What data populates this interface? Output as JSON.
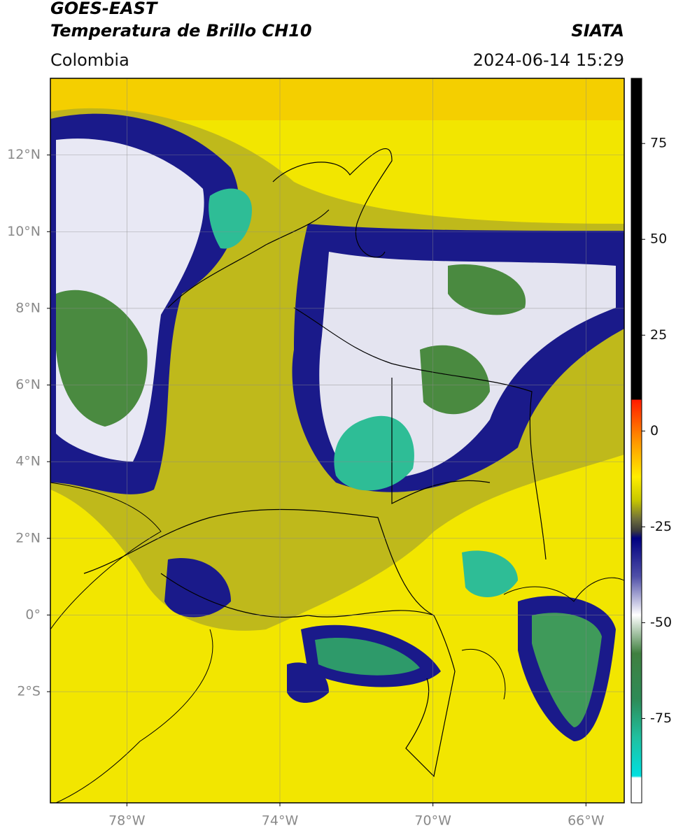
{
  "header": {
    "title": "GOES-EAST",
    "subtitle": "Temperatura de Brillo CH10",
    "source": "SIATA",
    "region": "Colombia",
    "datetime": "2024-06-14 15:29"
  },
  "map": {
    "xlim": [
      -80,
      -65
    ],
    "ylim": [
      -4.9,
      14
    ],
    "xticks": [
      {
        "value": -78,
        "label": "78°W"
      },
      {
        "value": -74,
        "label": "74°W"
      },
      {
        "value": -70,
        "label": "70°W"
      },
      {
        "value": -66,
        "label": "66°W"
      }
    ],
    "yticks": [
      {
        "value": 12,
        "label": "12°N"
      },
      {
        "value": 10,
        "label": "10°N"
      },
      {
        "value": 8,
        "label": "8°N"
      },
      {
        "value": 6,
        "label": "6°N"
      },
      {
        "value": 4,
        "label": "4°N"
      },
      {
        "value": 2,
        "label": "2°N"
      },
      {
        "value": 0,
        "label": "0°"
      },
      {
        "value": -2,
        "label": "2°S"
      }
    ],
    "grid": true
  },
  "colorbar": {
    "lim": [
      -97,
      92
    ],
    "ticks": [
      75,
      50,
      25,
      0,
      -25,
      -50,
      -75
    ],
    "colormap": [
      {
        "value": 92,
        "color": "#000000"
      },
      {
        "value": 8.2,
        "color": "#000000"
      },
      {
        "value": 8.2,
        "color": "#ff1a00"
      },
      {
        "value": -3,
        "color": "#ff9900"
      },
      {
        "value": -12,
        "color": "#ffee00"
      },
      {
        "value": -18,
        "color": "#c8c800"
      },
      {
        "value": -23,
        "color": "#6e6e3c"
      },
      {
        "value": -26,
        "color": "#3c3c3c"
      },
      {
        "value": -28,
        "color": "#000080"
      },
      {
        "value": -38,
        "color": "#5050a8"
      },
      {
        "value": -48,
        "color": "#ffffff"
      },
      {
        "value": -58,
        "color": "#408040"
      },
      {
        "value": -70,
        "color": "#2e8b57"
      },
      {
        "value": -80,
        "color": "#20c0a0"
      },
      {
        "value": -90,
        "color": "#00e0e0"
      },
      {
        "value": -90.5,
        "color": "#ffffff"
      },
      {
        "value": -97,
        "color": "#ffffff"
      }
    ]
  }
}
